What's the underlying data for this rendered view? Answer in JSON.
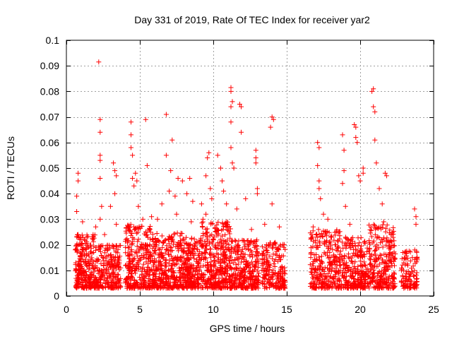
{
  "chart_data": {
    "type": "scatter",
    "title": "Day 331 of 2019, Rate Of TEC Index for receiver yar2",
    "xlabel": "GPS time / hours",
    "ylabel": "ROTI / TECUs",
    "xlim": [
      0,
      25
    ],
    "ylim": [
      0,
      0.1
    ],
    "xticks": [
      0,
      5,
      10,
      15,
      20,
      25
    ],
    "xtick_labels": [
      "0",
      "5",
      "10",
      "15",
      "20",
      "25"
    ],
    "yticks": [
      0,
      0.01,
      0.02,
      0.03,
      0.04,
      0.05,
      0.06,
      0.07,
      0.08,
      0.09,
      0.1
    ],
    "ytick_labels": [
      "0",
      "0.01",
      "0.02",
      "0.03",
      "0.04",
      "0.05",
      "0.06",
      "0.07",
      "0.08",
      "0.09",
      "0.1"
    ],
    "grid": true,
    "marker": "+",
    "color": "#ff0000",
    "series": [
      {
        "name": "yar2",
        "points": [
          [
            0.7,
            0.039
          ],
          [
            0.7,
            0.033
          ],
          [
            0.8,
            0.048
          ],
          [
            0.8,
            0.045
          ],
          [
            0.8,
            0.024
          ],
          [
            0.6,
            0.018
          ],
          [
            0.9,
            0.012
          ],
          [
            1.0,
            0.022
          ],
          [
            1.1,
            0.029
          ],
          [
            1.3,
            0.013
          ],
          [
            1.5,
            0.019
          ],
          [
            1.6,
            0.007
          ],
          [
            1.8,
            0.011
          ],
          [
            2.0,
            0.027
          ],
          [
            2.2,
            0.0915
          ],
          [
            2.3,
            0.069
          ],
          [
            2.3,
            0.064
          ],
          [
            2.3,
            0.055
          ],
          [
            2.3,
            0.053
          ],
          [
            2.3,
            0.046
          ],
          [
            2.4,
            0.035
          ],
          [
            2.3,
            0.03
          ],
          [
            2.6,
            0.024
          ],
          [
            2.8,
            0.018
          ],
          [
            3.0,
            0.035
          ],
          [
            3.2,
            0.052
          ],
          [
            3.3,
            0.049
          ],
          [
            3.4,
            0.047
          ],
          [
            3.3,
            0.04
          ],
          [
            3.4,
            0.028
          ],
          [
            3.6,
            0.014
          ],
          [
            4.4,
            0.068
          ],
          [
            4.4,
            0.063
          ],
          [
            4.4,
            0.058
          ],
          [
            4.5,
            0.055
          ],
          [
            4.5,
            0.046
          ],
          [
            4.6,
            0.043
          ],
          [
            4.7,
            0.048
          ],
          [
            4.8,
            0.045
          ],
          [
            4.9,
            0.035
          ],
          [
            5.2,
            0.03
          ],
          [
            5.4,
            0.069
          ],
          [
            5.5,
            0.051
          ],
          [
            5.8,
            0.031
          ],
          [
            6.2,
            0.03
          ],
          [
            6.5,
            0.036
          ],
          [
            6.8,
            0.071
          ],
          [
            6.8,
            0.055
          ],
          [
            7.0,
            0.041
          ],
          [
            7.1,
            0.049
          ],
          [
            7.2,
            0.061
          ],
          [
            7.4,
            0.039
          ],
          [
            7.6,
            0.046
          ],
          [
            7.5,
            0.032
          ],
          [
            7.9,
            0.045
          ],
          [
            8.2,
            0.04
          ],
          [
            8.4,
            0.046
          ],
          [
            8.6,
            0.037
          ],
          [
            8.5,
            0.029
          ],
          [
            9.2,
            0.036
          ],
          [
            9.3,
            0.03
          ],
          [
            9.5,
            0.047
          ],
          [
            9.6,
            0.054
          ],
          [
            9.7,
            0.056
          ],
          [
            9.8,
            0.042
          ],
          [
            9.9,
            0.038
          ],
          [
            9.5,
            0.032
          ],
          [
            10.3,
            0.055
          ],
          [
            10.5,
            0.05
          ],
          [
            10.6,
            0.045
          ],
          [
            10.7,
            0.041
          ],
          [
            10.9,
            0.036
          ],
          [
            11.2,
            0.0815
          ],
          [
            11.2,
            0.08
          ],
          [
            11.3,
            0.076
          ],
          [
            11.2,
            0.074
          ],
          [
            11.2,
            0.068
          ],
          [
            11.2,
            0.058
          ],
          [
            11.3,
            0.052
          ],
          [
            11.4,
            0.05
          ],
          [
            11.6,
            0.034
          ],
          [
            11.8,
            0.075
          ],
          [
            11.9,
            0.074
          ],
          [
            11.9,
            0.064
          ],
          [
            12.2,
            0.038
          ],
          [
            12.6,
            0.026
          ],
          [
            12.9,
            0.057
          ],
          [
            12.9,
            0.054
          ],
          [
            12.9,
            0.052
          ],
          [
            13.0,
            0.042
          ],
          [
            13.0,
            0.04
          ],
          [
            13.5,
            0.028
          ],
          [
            13.9,
            0.066
          ],
          [
            14.0,
            0.07
          ],
          [
            14.1,
            0.069
          ],
          [
            14.0,
            0.036
          ],
          [
            14.5,
            0.027
          ],
          [
            14.8,
            0.019
          ],
          [
            16.8,
            0.027
          ],
          [
            17.1,
            0.06
          ],
          [
            17.2,
            0.058
          ],
          [
            17.1,
            0.051
          ],
          [
            17.2,
            0.045
          ],
          [
            17.2,
            0.042
          ],
          [
            17.3,
            0.038
          ],
          [
            17.5,
            0.032
          ],
          [
            17.8,
            0.03
          ],
          [
            18.0,
            0.023
          ],
          [
            18.8,
            0.063
          ],
          [
            18.9,
            0.057
          ],
          [
            18.9,
            0.049
          ],
          [
            18.8,
            0.044
          ],
          [
            19.0,
            0.035
          ],
          [
            19.3,
            0.028
          ],
          [
            19.6,
            0.067
          ],
          [
            19.7,
            0.066
          ],
          [
            19.7,
            0.062
          ],
          [
            19.8,
            0.06
          ],
          [
            19.9,
            0.047
          ],
          [
            20.0,
            0.045
          ],
          [
            20.2,
            0.05
          ],
          [
            20.2,
            0.048
          ],
          [
            20.8,
            0.08
          ],
          [
            20.9,
            0.081
          ],
          [
            20.9,
            0.074
          ],
          [
            21.0,
            0.072
          ],
          [
            21.0,
            0.061
          ],
          [
            21.1,
            0.052
          ],
          [
            21.3,
            0.042
          ],
          [
            21.5,
            0.036
          ],
          [
            21.7,
            0.048
          ],
          [
            21.8,
            0.047
          ],
          [
            21.6,
            0.029
          ],
          [
            22.0,
            0.019
          ],
          [
            22.9,
            0.017
          ],
          [
            23.7,
            0.034
          ],
          [
            23.8,
            0.031
          ],
          [
            23.8,
            0.028
          ]
        ],
        "dense_bands": [
          {
            "x": [
              0.6,
              2.0
            ],
            "y": [
              0.003,
              0.024
            ],
            "count": 260
          },
          {
            "x": [
              2.0,
              3.7
            ],
            "y": [
              0.003,
              0.02
            ],
            "count": 230
          },
          {
            "x": [
              4.0,
              5.8
            ],
            "y": [
              0.003,
              0.028
            ],
            "count": 300
          },
          {
            "x": [
              5.8,
              7.9
            ],
            "y": [
              0.003,
              0.025
            ],
            "count": 340
          },
          {
            "x": [
              7.9,
              9.2
            ],
            "y": [
              0.003,
              0.023
            ],
            "count": 240
          },
          {
            "x": [
              9.2,
              11.2
            ],
            "y": [
              0.003,
              0.029
            ],
            "count": 360
          },
          {
            "x": [
              11.2,
              13.1
            ],
            "y": [
              0.003,
              0.022
            ],
            "count": 300
          },
          {
            "x": [
              13.3,
              14.9
            ],
            "y": [
              0.003,
              0.021
            ],
            "count": 200
          },
          {
            "x": [
              16.6,
              18.8
            ],
            "y": [
              0.003,
              0.026
            ],
            "count": 300
          },
          {
            "x": [
              18.8,
              20.6
            ],
            "y": [
              0.003,
              0.023
            ],
            "count": 260
          },
          {
            "x": [
              20.6,
              22.4
            ],
            "y": [
              0.003,
              0.028
            ],
            "count": 280
          },
          {
            "x": [
              22.8,
              23.9
            ],
            "y": [
              0.003,
              0.018
            ],
            "count": 110
          }
        ]
      }
    ]
  }
}
